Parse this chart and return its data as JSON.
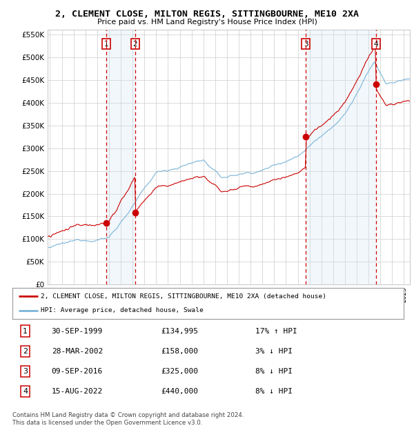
{
  "title": "2, CLEMENT CLOSE, MILTON REGIS, SITTINGBOURNE, ME10 2XA",
  "subtitle": "Price paid vs. HM Land Registry's House Price Index (HPI)",
  "ylabel_ticks": [
    "£0",
    "£50K",
    "£100K",
    "£150K",
    "£200K",
    "£250K",
    "£300K",
    "£350K",
    "£400K",
    "£450K",
    "£500K",
    "£550K"
  ],
  "ytick_values": [
    0,
    50000,
    100000,
    150000,
    200000,
    250000,
    300000,
    350000,
    400000,
    450000,
    500000,
    550000
  ],
  "ylim": [
    0,
    560000
  ],
  "xlim_start": 1994.8,
  "xlim_end": 2025.5,
  "sale_dates_num": [
    1999.75,
    2002.22,
    2016.69,
    2022.62
  ],
  "sale_prices": [
    134995,
    158000,
    325000,
    440000
  ],
  "sale_labels": [
    "1",
    "2",
    "3",
    "4"
  ],
  "vline_dates": [
    1999.75,
    2002.22,
    2016.69,
    2022.62
  ],
  "legend_line1": "2, CLEMENT CLOSE, MILTON REGIS, SITTINGBOURNE, ME10 2XA (detached house)",
  "legend_line2": "HPI: Average price, detached house, Swale",
  "table_data": [
    [
      "1",
      "30-SEP-1999",
      "£134,995",
      "17% ↑ HPI"
    ],
    [
      "2",
      "28-MAR-2002",
      "£158,000",
      "3% ↓ HPI"
    ],
    [
      "3",
      "09-SEP-2016",
      "£325,000",
      "8% ↓ HPI"
    ],
    [
      "4",
      "15-AUG-2022",
      "£440,000",
      "8% ↓ HPI"
    ]
  ],
  "footer": "Contains HM Land Registry data © Crown copyright and database right 2024.\nThis data is licensed under the Open Government Licence v3.0.",
  "hpi_color": "#7ab4d8",
  "price_color": "#cc0000",
  "vline_color": "#cc0000",
  "shade_color": "#cce0f0",
  "grid_color": "#cccccc",
  "background_color": "#ffffff"
}
